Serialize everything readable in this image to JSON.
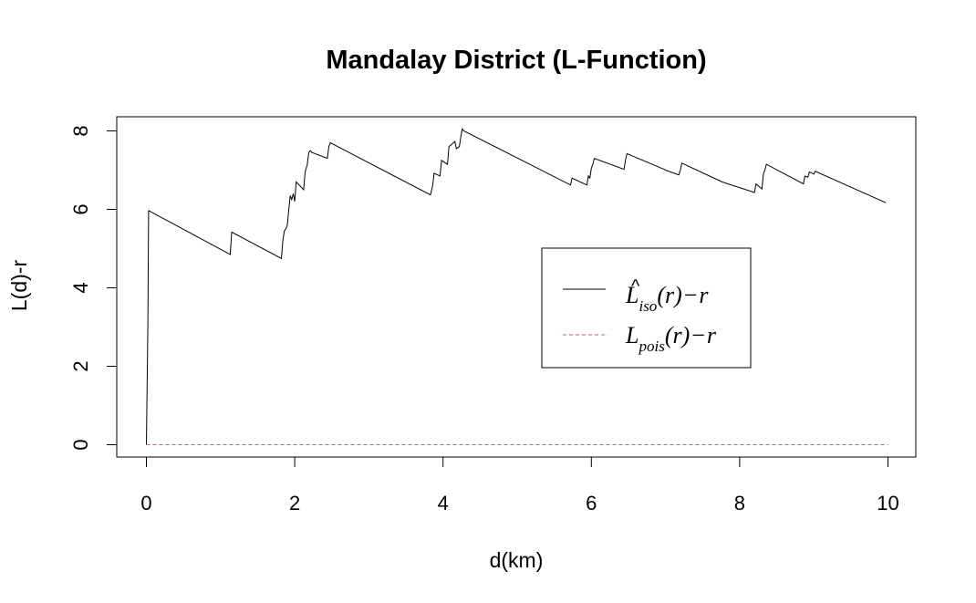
{
  "chart_data": {
    "type": "line",
    "title": "Mandalay District (L-Function)",
    "xlabel": "d(km)",
    "ylabel": "L(d)-r",
    "xlim": [
      0,
      10
    ],
    "ylim": [
      0,
      8
    ],
    "xticks": [
      0,
      2,
      4,
      6,
      8,
      10
    ],
    "yticks": [
      0,
      2,
      4,
      6,
      8
    ],
    "grid": false,
    "legend_position": "right",
    "series": [
      {
        "name": "L̂iso(r) − r",
        "legend": {
          "base": "L",
          "hat": "^",
          "sub": "iso",
          "arg": "(r)",
          "minus": "−",
          "r": "r"
        },
        "color": "#000000",
        "style": "solid",
        "x": [
          0,
          0.02,
          0.03,
          1.13,
          1.15,
          1.82,
          1.84,
          1.86,
          1.88,
          1.9,
          1.92,
          1.94,
          1.96,
          1.98,
          2.0,
          2.02,
          2.12,
          2.14,
          2.17,
          2.19,
          2.21,
          2.23,
          2.44,
          2.46,
          2.48,
          2.5,
          3.83,
          3.86,
          3.88,
          3.96,
          3.98,
          4.06,
          4.08,
          4.16,
          4.18,
          4.22,
          4.24,
          4.26,
          4.28,
          5.72,
          5.74,
          5.76,
          5.94,
          5.96,
          5.98,
          6.0,
          6.02,
          6.04,
          6.44,
          6.46,
          6.48,
          6.98,
          7.0,
          7.18,
          7.2,
          7.22,
          7.74,
          7.76,
          8.2,
          8.22,
          8.3,
          8.32,
          8.34,
          8.36,
          8.86,
          8.88,
          8.92,
          8.94,
          9.0,
          9.02,
          9.97
        ],
        "y": [
          0,
          3.0,
          5.97,
          4.85,
          5.42,
          4.75,
          5.2,
          5.45,
          5.5,
          5.6,
          6.0,
          6.35,
          6.25,
          6.4,
          6.2,
          6.7,
          6.5,
          6.95,
          7.15,
          7.45,
          7.5,
          7.45,
          7.3,
          7.6,
          7.7,
          7.68,
          6.37,
          6.6,
          6.92,
          6.85,
          7.25,
          7.15,
          7.6,
          7.73,
          7.55,
          7.6,
          7.85,
          8.05,
          8.0,
          6.62,
          6.8,
          6.78,
          6.62,
          6.85,
          6.8,
          7.05,
          7.15,
          7.3,
          7.02,
          7.25,
          7.42,
          7.02,
          7.0,
          6.88,
          7.0,
          7.18,
          6.72,
          6.7,
          6.43,
          6.65,
          6.52,
          6.9,
          7.0,
          7.15,
          6.65,
          6.85,
          6.82,
          6.95,
          6.9,
          6.97,
          6.17
        ]
      },
      {
        "name": "Lpois(r) − r",
        "legend": {
          "base": "L",
          "sub": "pois",
          "arg": "(r)",
          "minus": "−",
          "r": "r"
        },
        "color": "#DF536B",
        "style": "dashed",
        "x": [
          0,
          10
        ],
        "y": [
          0,
          0
        ]
      }
    ]
  }
}
